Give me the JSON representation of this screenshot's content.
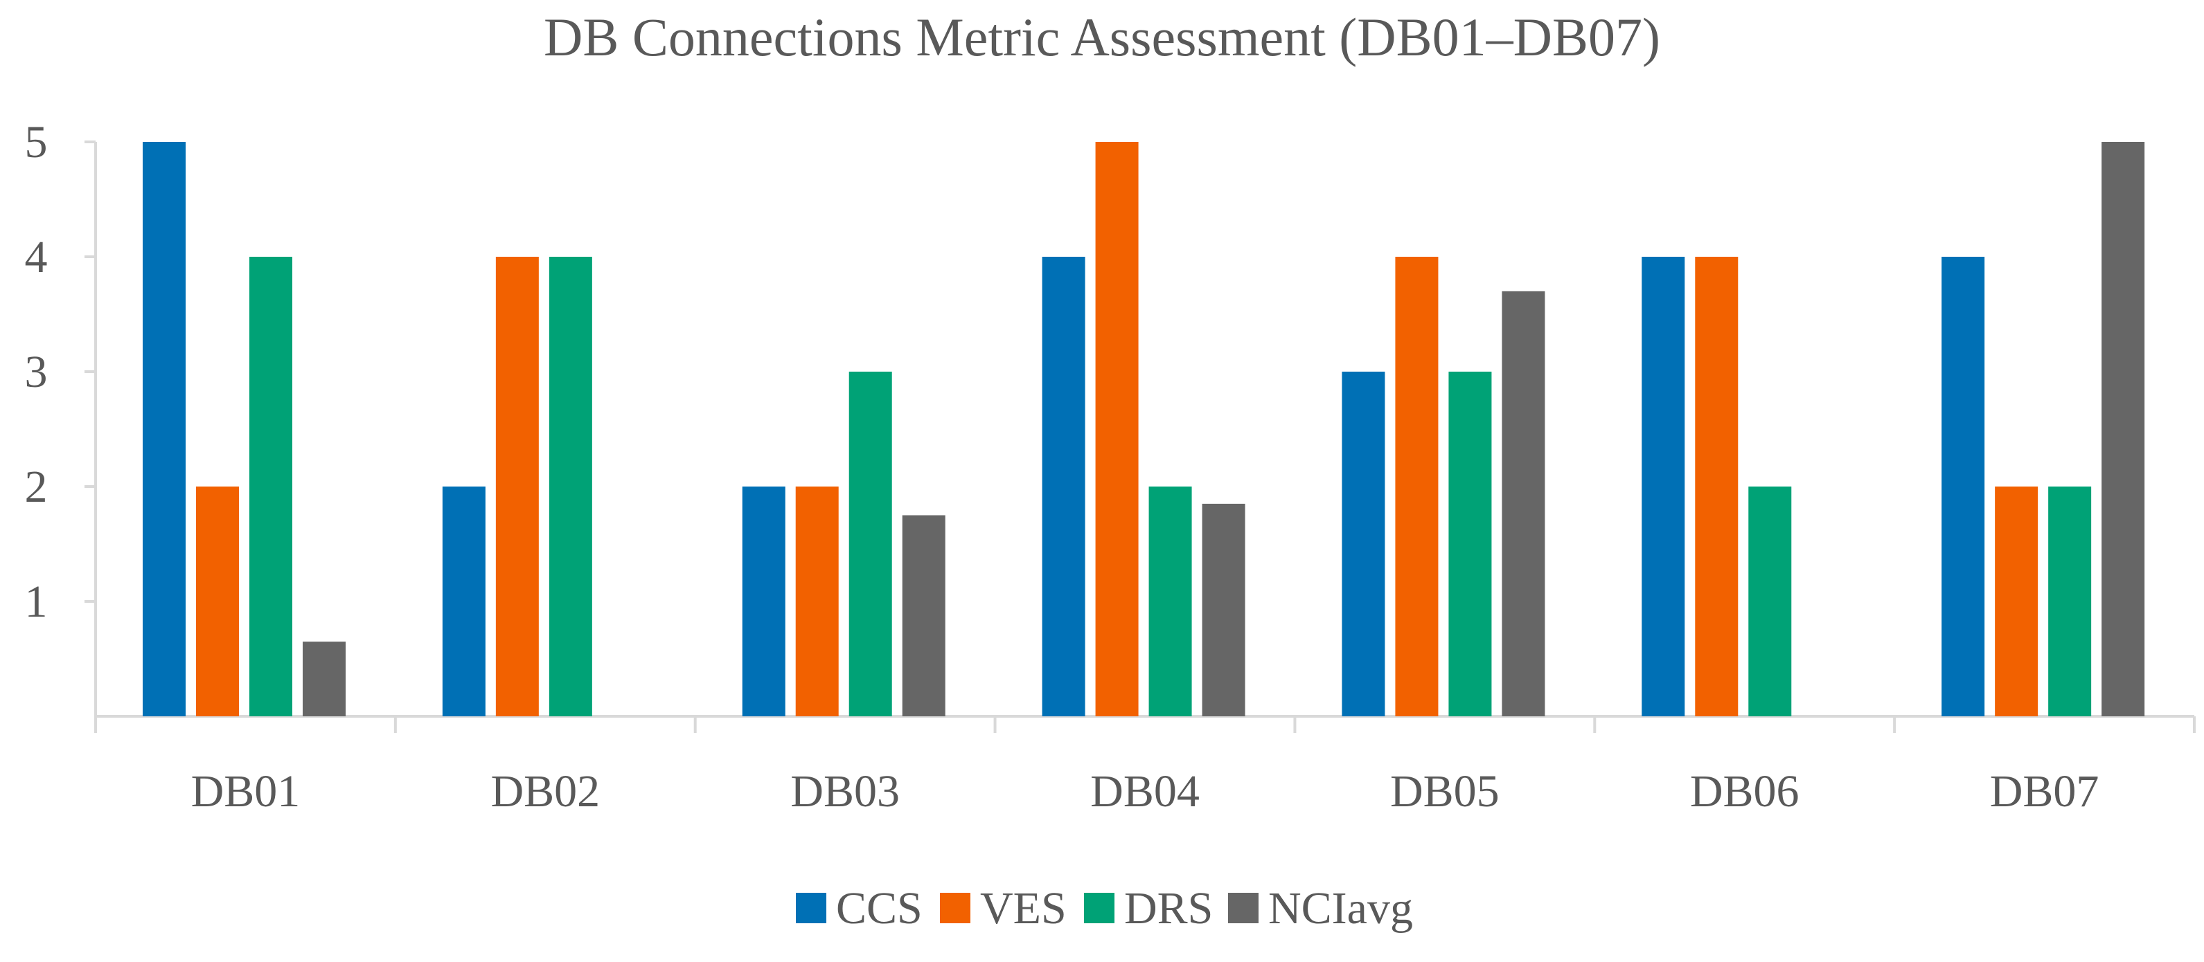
{
  "chart_data": {
    "type": "bar",
    "title": "DB Connections Metric Assessment (DB01–DB07)",
    "xlabel": "",
    "ylabel": "",
    "categories": [
      "DB01",
      "DB02",
      "DB03",
      "DB04",
      "DB05",
      "DB06",
      "DB07"
    ],
    "series": [
      {
        "name": "CCS",
        "color": "#0070B5",
        "values": [
          5,
          2,
          2,
          4,
          3,
          4,
          4
        ]
      },
      {
        "name": "VES",
        "color": "#F26100",
        "values": [
          2,
          4,
          2,
          5,
          4,
          4,
          2
        ]
      },
      {
        "name": "DRS",
        "color": "#00A276",
        "values": [
          4,
          4,
          3,
          2,
          3,
          2,
          2
        ]
      },
      {
        "name": "NCIavg",
        "color": "#666666",
        "values": [
          0.65,
          0,
          1.75,
          1.85,
          3.7,
          0,
          5
        ]
      }
    ],
    "ylim": [
      0,
      5
    ],
    "yticks": [
      "1",
      "2",
      "3",
      "4",
      "5"
    ],
    "grid": false,
    "legend_position": "bottom"
  }
}
